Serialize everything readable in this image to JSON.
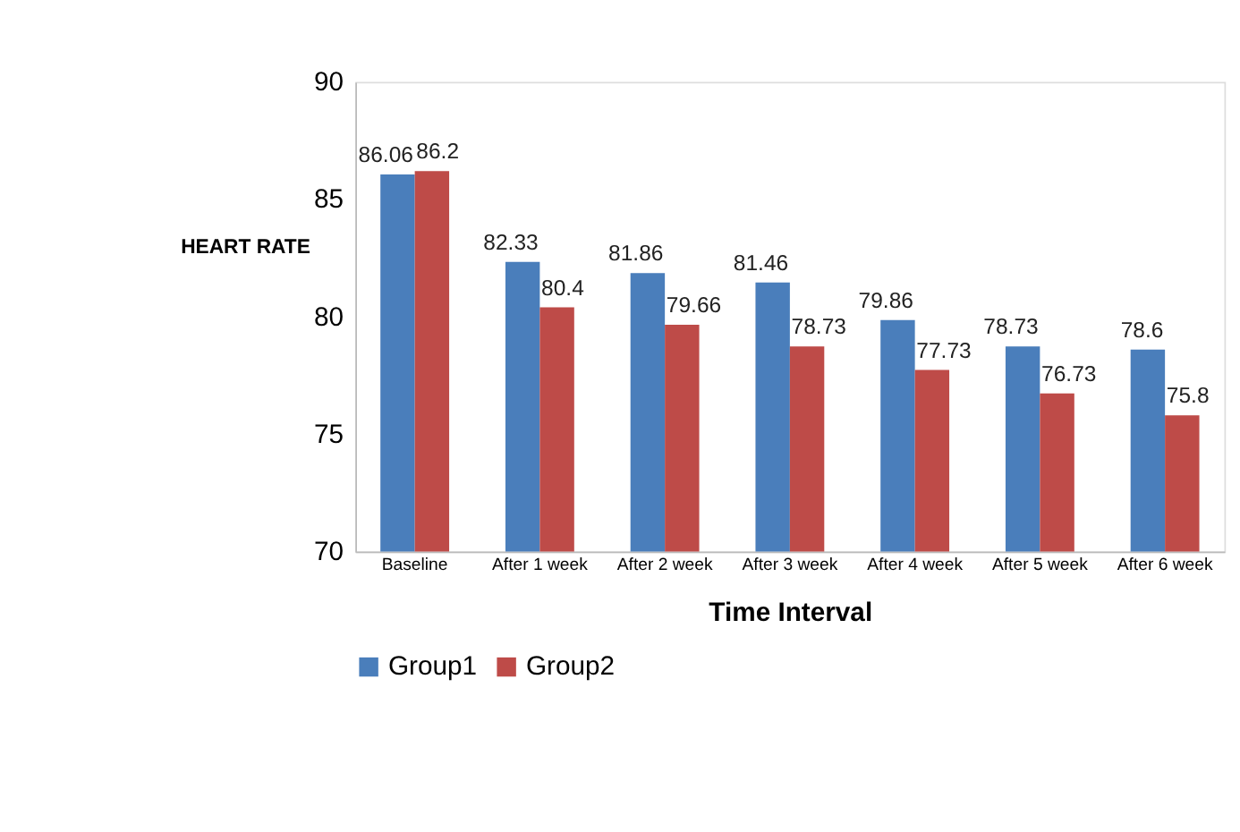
{
  "chart_data": {
    "type": "bar",
    "xlabel": "Time Interval",
    "ylabel": "HEART RATE",
    "categories": [
      "Baseline",
      "After 1 week",
      "After 2 week",
      "After 3 week",
      "After 4 week",
      "After 5 week",
      "After 6 week"
    ],
    "series": [
      {
        "name": "Group1",
        "color": "#4a7ebb",
        "values": [
          86.06,
          82.33,
          81.86,
          81.46,
          79.86,
          78.73,
          78.6
        ]
      },
      {
        "name": "Group2",
        "color": "#be4b48",
        "values": [
          86.2,
          80.4,
          79.66,
          78.73,
          77.73,
          76.73,
          75.8
        ]
      }
    ],
    "ylim": [
      70,
      90
    ],
    "yticks": [
      70,
      75,
      80,
      85,
      90
    ],
    "grid": false,
    "legend": "bottom",
    "data_labels": true
  }
}
